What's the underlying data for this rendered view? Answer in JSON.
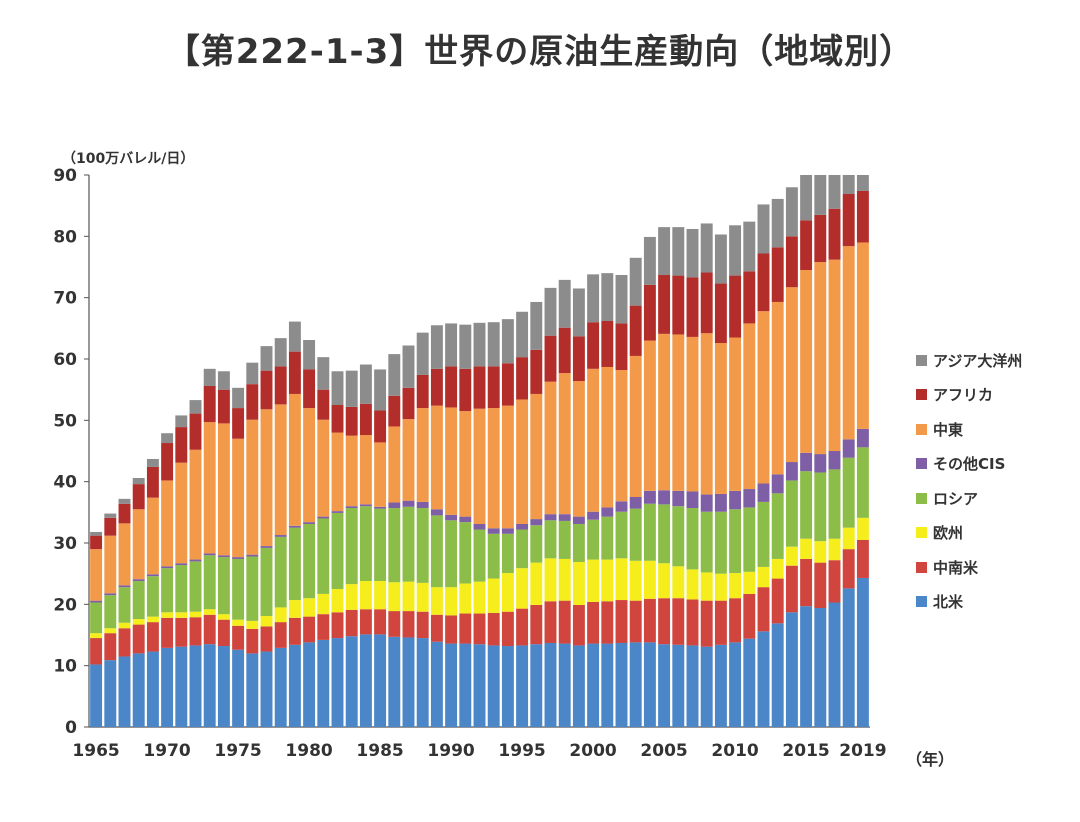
{
  "title": "【第222-1-3】世界の原油生産動向（地域別）",
  "chart_data": {
    "type": "stacked-bar",
    "ylabel": "（100万バレル/日）",
    "xlabel": "（年）",
    "ylim": [
      0,
      90
    ],
    "yticks": [
      0,
      10,
      20,
      30,
      40,
      50,
      60,
      70,
      80,
      90
    ],
    "xticks": [
      "1965",
      "1970",
      "1975",
      "1980",
      "1985",
      "1990",
      "1995",
      "2000",
      "2005",
      "2010",
      "2015",
      "2019"
    ],
    "legend_position": "right",
    "x": [
      1965,
      1966,
      1967,
      1968,
      1969,
      1970,
      1971,
      1972,
      1973,
      1974,
      1975,
      1976,
      1977,
      1978,
      1979,
      1980,
      1981,
      1982,
      1983,
      1984,
      1985,
      1986,
      1987,
      1988,
      1989,
      1990,
      1991,
      1992,
      1993,
      1994,
      1995,
      1996,
      1997,
      1998,
      1999,
      2000,
      2001,
      2002,
      2003,
      2004,
      2005,
      2006,
      2007,
      2008,
      2009,
      2010,
      2011,
      2012,
      2013,
      2014,
      2015,
      2016,
      2017,
      2018,
      2019
    ],
    "series": [
      {
        "name": "北米",
        "color": "#4a86c8",
        "values": [
          10.2,
          10.9,
          11.5,
          12.0,
          12.3,
          12.9,
          13.1,
          13.3,
          13.5,
          13.2,
          12.6,
          12.0,
          12.3,
          12.9,
          13.4,
          13.8,
          14.2,
          14.5,
          14.8,
          15.1,
          15.1,
          14.7,
          14.6,
          14.5,
          13.9,
          13.6,
          13.6,
          13.5,
          13.3,
          13.2,
          13.3,
          13.5,
          13.7,
          13.6,
          13.3,
          13.6,
          13.6,
          13.7,
          13.8,
          13.8,
          13.5,
          13.4,
          13.3,
          13.1,
          13.4,
          13.8,
          14.4,
          15.6,
          16.9,
          18.7,
          19.7,
          19.4,
          20.3,
          22.6,
          24.3
        ]
      },
      {
        "name": "中南米",
        "color": "#d0453e",
        "values": [
          4.3,
          4.4,
          4.6,
          4.7,
          4.8,
          4.9,
          4.7,
          4.6,
          4.8,
          4.3,
          3.9,
          4.0,
          4.1,
          4.2,
          4.4,
          4.2,
          4.2,
          4.2,
          4.3,
          4.1,
          4.1,
          4.2,
          4.3,
          4.3,
          4.4,
          4.6,
          4.9,
          5.0,
          5.3,
          5.6,
          6.0,
          6.4,
          6.8,
          7.0,
          6.6,
          6.8,
          6.9,
          7.0,
          6.8,
          7.1,
          7.5,
          7.6,
          7.5,
          7.5,
          7.2,
          7.2,
          7.3,
          7.2,
          7.3,
          7.6,
          7.7,
          7.4,
          6.9,
          6.4,
          6.2
        ]
      },
      {
        "name": "欧州",
        "color": "#f5ee1c",
        "values": [
          0.8,
          0.8,
          0.9,
          0.9,
          0.9,
          0.9,
          0.9,
          0.9,
          0.9,
          0.9,
          1.0,
          1.3,
          1.7,
          2.4,
          2.9,
          3.0,
          3.3,
          3.8,
          4.2,
          4.6,
          4.6,
          4.7,
          4.8,
          4.7,
          4.5,
          4.6,
          4.9,
          5.2,
          5.6,
          6.3,
          6.6,
          6.9,
          7.0,
          6.8,
          7.0,
          6.9,
          6.8,
          6.8,
          6.5,
          6.2,
          5.7,
          5.2,
          4.9,
          4.6,
          4.4,
          4.1,
          3.6,
          3.3,
          3.2,
          3.1,
          3.3,
          3.5,
          3.5,
          3.5,
          3.6
        ]
      },
      {
        "name": "ロシア",
        "color": "#8cbd48",
        "values": [
          5.0,
          5.4,
          5.8,
          6.2,
          6.6,
          7.2,
          7.7,
          8.2,
          8.8,
          9.3,
          9.9,
          10.5,
          11.1,
          11.5,
          11.8,
          12.1,
          12.3,
          12.4,
          12.4,
          12.2,
          11.8,
          12.1,
          12.2,
          12.2,
          11.7,
          10.9,
          10.0,
          8.5,
          7.3,
          6.4,
          6.3,
          6.1,
          6.2,
          6.2,
          6.2,
          6.5,
          7.0,
          7.6,
          8.5,
          9.3,
          9.6,
          9.8,
          10.0,
          9.9,
          10.1,
          10.4,
          10.5,
          10.6,
          10.7,
          10.8,
          11.0,
          11.2,
          11.3,
          11.4,
          11.5
        ]
      },
      {
        "name": "その他CIS",
        "color": "#7e5fa6",
        "values": [
          0.3,
          0.3,
          0.3,
          0.3,
          0.3,
          0.3,
          0.3,
          0.3,
          0.3,
          0.3,
          0.3,
          0.3,
          0.3,
          0.3,
          0.3,
          0.3,
          0.3,
          0.3,
          0.3,
          0.3,
          0.3,
          0.9,
          1.0,
          1.0,
          1.0,
          0.9,
          0.9,
          0.9,
          0.9,
          0.9,
          0.9,
          1.0,
          1.0,
          1.1,
          1.2,
          1.3,
          1.5,
          1.7,
          1.9,
          2.1,
          2.3,
          2.5,
          2.7,
          2.8,
          2.9,
          3.0,
          3.0,
          3.0,
          3.1,
          3.0,
          3.0,
          3.0,
          3.0,
          3.0,
          3.0
        ]
      },
      {
        "name": "中東",
        "color": "#f39a4a",
        "values": [
          8.4,
          9.4,
          10.1,
          11.4,
          12.5,
          14.0,
          16.4,
          17.9,
          21.4,
          21.5,
          19.3,
          22.0,
          22.3,
          21.3,
          21.5,
          18.6,
          15.8,
          12.8,
          11.5,
          11.3,
          10.5,
          12.4,
          13.3,
          15.3,
          16.9,
          17.5,
          17.2,
          18.8,
          19.6,
          20.0,
          20.3,
          20.4,
          21.6,
          23.0,
          22.1,
          23.3,
          22.9,
          21.4,
          23.0,
          24.5,
          25.5,
          25.5,
          25.2,
          26.3,
          24.6,
          25.0,
          27.0,
          28.1,
          28.1,
          28.5,
          29.8,
          31.3,
          31.2,
          31.5,
          30.4
        ]
      },
      {
        "name": "アフリカ",
        "color": "#b32d2b",
        "values": [
          2.2,
          2.9,
          3.2,
          4.1,
          5.0,
          6.1,
          5.8,
          5.9,
          5.9,
          5.5,
          5.0,
          5.8,
          6.3,
          6.2,
          6.9,
          6.3,
          4.9,
          4.5,
          4.7,
          5.1,
          5.2,
          5.0,
          5.1,
          5.4,
          6.0,
          6.7,
          6.9,
          6.9,
          6.8,
          6.9,
          6.9,
          7.2,
          7.5,
          7.4,
          7.3,
          7.6,
          7.5,
          7.6,
          8.2,
          9.1,
          9.6,
          9.6,
          9.7,
          9.9,
          9.7,
          10.1,
          8.5,
          9.4,
          8.9,
          8.3,
          8.1,
          7.7,
          8.3,
          8.5,
          8.4
        ]
      },
      {
        "name": "アジア大洋州",
        "color": "#8c8c8c",
        "values": [
          0.6,
          0.7,
          0.8,
          1.0,
          1.3,
          1.6,
          1.9,
          2.2,
          2.8,
          3.0,
          3.3,
          3.5,
          4.0,
          4.6,
          4.9,
          4.8,
          5.3,
          5.5,
          5.9,
          6.4,
          6.7,
          6.8,
          6.9,
          6.9,
          7.1,
          7.0,
          7.2,
          7.1,
          7.2,
          7.2,
          7.4,
          7.8,
          7.8,
          7.8,
          7.8,
          7.8,
          7.8,
          7.9,
          7.8,
          7.8,
          7.8,
          7.9,
          7.9,
          8.0,
          8.0,
          8.2,
          8.1,
          8.0,
          7.9,
          8.0,
          8.0,
          7.8,
          7.6,
          7.4,
          7.3
        ]
      }
    ]
  }
}
